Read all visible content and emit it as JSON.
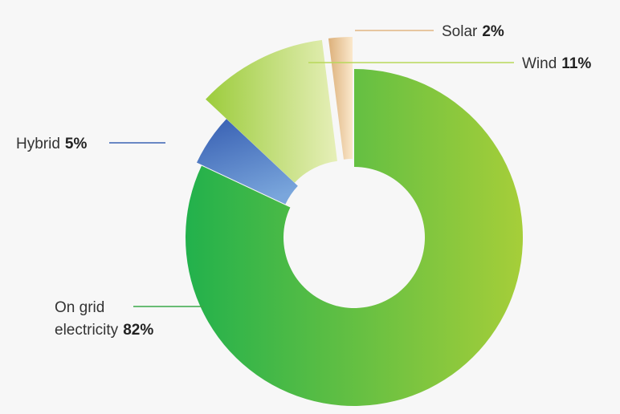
{
  "chart_data": {
    "type": "pie",
    "style": "donut with exploded segments",
    "categories": [
      "On grid electricity",
      "Hybrid",
      "Wind",
      "Solar"
    ],
    "values": [
      82,
      5,
      11,
      2
    ],
    "unit": "%",
    "labels": [
      {
        "lines": [
          "On grid",
          "electricity"
        ],
        "value_text": "82%"
      },
      {
        "lines": [
          "Hybrid"
        ],
        "value_text": "5%"
      },
      {
        "lines": [
          "Wind"
        ],
        "value_text": "11%"
      },
      {
        "lines": [
          "Solar"
        ],
        "value_text": "2%"
      }
    ],
    "colors": {
      "on_grid": [
        "#22b14c",
        "#a6ce39"
      ],
      "hybrid": [
        "#3a62b4",
        "#7aa6dc"
      ],
      "wind": [
        "#9ccc3c",
        "#e6efb8"
      ],
      "solar": [
        "#dcb07a",
        "#fbe8cc"
      ]
    },
    "leader_colors": [
      "#3aa848",
      "#3a62b4",
      "#b8d85a",
      "#e2b684"
    ],
    "legend": "none",
    "grid": false
  }
}
